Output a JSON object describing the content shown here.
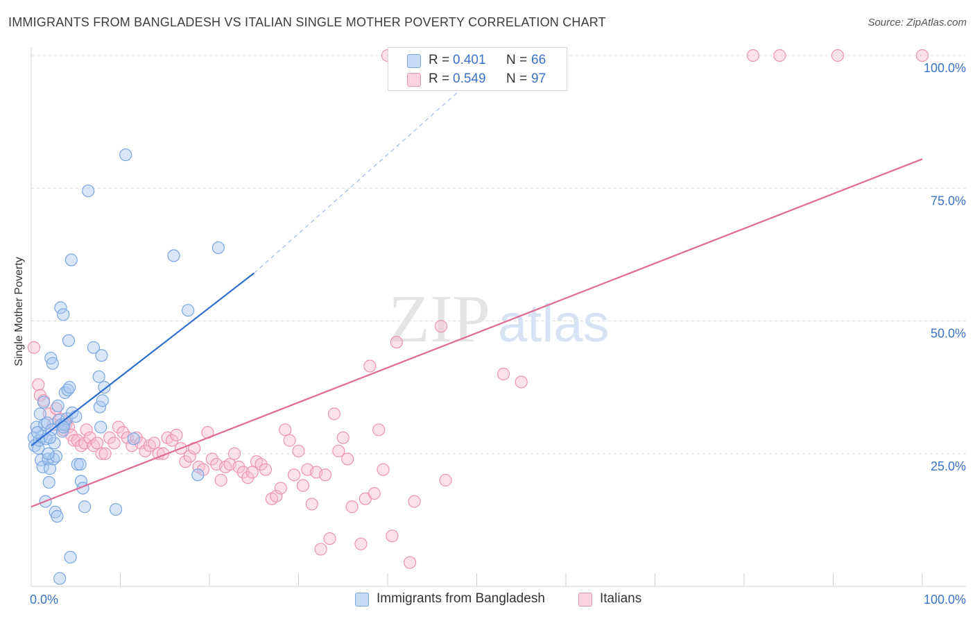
{
  "title": "IMMIGRANTS FROM BANGLADESH VS ITALIAN SINGLE MOTHER POVERTY CORRELATION CHART",
  "source": "Source: ZipAtlas.com",
  "watermark": {
    "zip": "ZIP",
    "atlas": "atlas"
  },
  "legend_top": [
    {
      "r_label": "R =",
      "r_value": "0.401",
      "n_label": "N =",
      "n_value": "66"
    },
    {
      "r_label": "R =",
      "r_value": "0.549",
      "n_label": "N =",
      "n_value": "97"
    }
  ],
  "colors": {
    "bangladesh_fill": "#a9c8f0",
    "bangladesh_stroke": "#7aa6e0",
    "bangladesh_line": "#2e6fd1",
    "italians_fill": "#f6bfd0",
    "italians_stroke": "#ec93b0",
    "italians_line": "#e06a94",
    "tick_text": "#3a72c8",
    "grid": "#dcdcdc"
  },
  "chart_data": {
    "type": "scatter",
    "title": "IMMIGRANTS FROM BANGLADESH VS ITALIAN SINGLE MOTHER POVERTY CORRELATION CHART",
    "xlabel": "",
    "ylabel": "Single Mother Poverty",
    "xlim": [
      0,
      100
    ],
    "ylim": [
      0,
      100
    ],
    "x_tick_labels": [
      "0.0%",
      "100.0%"
    ],
    "y_ticks": [
      25,
      50,
      75,
      100
    ],
    "y_tick_labels": [
      "25.0%",
      "50.0%",
      "75.0%",
      "100.0%"
    ],
    "grid": true,
    "legend_position": "top-center",
    "series": [
      {
        "name": "Immigrants from Bangladesh",
        "trend": {
          "x": [
            0,
            25
          ],
          "y": [
            26.5,
            59
          ]
        },
        "trend_extension": {
          "x": [
            25,
            52.5
          ],
          "y": [
            59,
            100
          ]
        },
        "points": [
          [
            0.3,
            28.0
          ],
          [
            0.4,
            26.5
          ],
          [
            0.6,
            30.0
          ],
          [
            0.8,
            26.0
          ],
          [
            0.9,
            27.5
          ],
          [
            1.0,
            32.5
          ],
          [
            1.1,
            23.8
          ],
          [
            1.2,
            28.3
          ],
          [
            1.3,
            22.5
          ],
          [
            1.4,
            34.7
          ],
          [
            1.5,
            30.5
          ],
          [
            1.6,
            16.0
          ],
          [
            1.7,
            27.8
          ],
          [
            1.8,
            30.8
          ],
          [
            1.9,
            24.0
          ],
          [
            2.0,
            19.6
          ],
          [
            2.1,
            22.2
          ],
          [
            2.2,
            43.0
          ],
          [
            2.3,
            29.5
          ],
          [
            2.4,
            42.0
          ],
          [
            2.5,
            24.0
          ],
          [
            2.6,
            27.0
          ],
          [
            2.7,
            14.0
          ],
          [
            2.8,
            24.5
          ],
          [
            2.9,
            13.2
          ],
          [
            3.0,
            34.0
          ],
          [
            3.1,
            31.3
          ],
          [
            3.2,
            1.5
          ],
          [
            3.3,
            52.5
          ],
          [
            3.4,
            30.5
          ],
          [
            3.5,
            29.2
          ],
          [
            3.6,
            51.2
          ],
          [
            3.7,
            30.5
          ],
          [
            3.8,
            36.5
          ],
          [
            4.0,
            31.6
          ],
          [
            4.1,
            37.0
          ],
          [
            4.2,
            46.3
          ],
          [
            4.3,
            37.5
          ],
          [
            4.4,
            5.5
          ],
          [
            4.5,
            61.5
          ],
          [
            4.6,
            32.7
          ],
          [
            5.2,
            23.0
          ],
          [
            5.5,
            23.0
          ],
          [
            5.6,
            19.8
          ],
          [
            5.8,
            18.5
          ],
          [
            6.0,
            15.0
          ],
          [
            6.4,
            74.5
          ],
          [
            7.0,
            45.0
          ],
          [
            7.6,
            39.5
          ],
          [
            7.7,
            33.8
          ],
          [
            7.8,
            30.0
          ],
          [
            7.9,
            43.5
          ],
          [
            8.0,
            35.0
          ],
          [
            8.2,
            37.5
          ],
          [
            9.5,
            14.5
          ],
          [
            10.6,
            81.3
          ],
          [
            11.5,
            27.8
          ],
          [
            16.0,
            62.3
          ],
          [
            17.6,
            52.0
          ],
          [
            18.7,
            21.0
          ],
          [
            21.0,
            63.8
          ],
          [
            1.9,
            25.0
          ],
          [
            0.7,
            29.0
          ],
          [
            2.1,
            28.0
          ],
          [
            3.6,
            30.0
          ],
          [
            5.0,
            32.0
          ]
        ]
      },
      {
        "name": "Italians",
        "trend": {
          "x": [
            0,
            100
          ],
          "y": [
            15,
            80.5
          ]
        },
        "points": [
          [
            0.3,
            45.0
          ],
          [
            0.8,
            38.0
          ],
          [
            1.0,
            36.0
          ],
          [
            1.4,
            35.0
          ],
          [
            2.0,
            32.5
          ],
          [
            2.5,
            30.5
          ],
          [
            2.8,
            33.5
          ],
          [
            3.3,
            31.5
          ],
          [
            3.6,
            29.5
          ],
          [
            3.9,
            30.5
          ],
          [
            4.2,
            30.0
          ],
          [
            4.5,
            28.5
          ],
          [
            4.8,
            27.5
          ],
          [
            5.2,
            27.5
          ],
          [
            5.6,
            26.5
          ],
          [
            6.0,
            27.0
          ],
          [
            6.2,
            29.5
          ],
          [
            6.6,
            28.0
          ],
          [
            7.0,
            26.5
          ],
          [
            7.4,
            27.0
          ],
          [
            7.9,
            25.0
          ],
          [
            8.3,
            25.0
          ],
          [
            8.8,
            28.0
          ],
          [
            9.3,
            27.0
          ],
          [
            9.8,
            30.0
          ],
          [
            10.3,
            29.0
          ],
          [
            10.8,
            28.0
          ],
          [
            11.3,
            26.5
          ],
          [
            11.8,
            28.0
          ],
          [
            12.3,
            27.0
          ],
          [
            12.8,
            25.5
          ],
          [
            13.3,
            26.5
          ],
          [
            13.8,
            27.0
          ],
          [
            14.3,
            25.0
          ],
          [
            14.8,
            25.0
          ],
          [
            15.3,
            28.0
          ],
          [
            15.8,
            27.5
          ],
          [
            16.3,
            28.5
          ],
          [
            16.8,
            26.0
          ],
          [
            17.3,
            23.5
          ],
          [
            17.8,
            24.5
          ],
          [
            18.3,
            26.0
          ],
          [
            18.8,
            22.5
          ],
          [
            19.3,
            22.0
          ],
          [
            19.8,
            29.0
          ],
          [
            20.3,
            24.0
          ],
          [
            20.8,
            23.0
          ],
          [
            21.3,
            20.0
          ],
          [
            21.8,
            22.5
          ],
          [
            22.3,
            23.0
          ],
          [
            22.8,
            25.0
          ],
          [
            23.3,
            22.5
          ],
          [
            23.8,
            21.5
          ],
          [
            24.3,
            20.5
          ],
          [
            24.8,
            21.5
          ],
          [
            25.3,
            23.5
          ],
          [
            25.8,
            23.0
          ],
          [
            26.3,
            22.0
          ],
          [
            27.0,
            16.5
          ],
          [
            27.5,
            17.0
          ],
          [
            28.0,
            18.5
          ],
          [
            28.5,
            29.5
          ],
          [
            29.0,
            27.5
          ],
          [
            29.5,
            21.0
          ],
          [
            30.0,
            25.5
          ],
          [
            30.5,
            19.0
          ],
          [
            31.0,
            22.0
          ],
          [
            31.5,
            15.5
          ],
          [
            32.0,
            21.5
          ],
          [
            32.5,
            7.0
          ],
          [
            33.0,
            21.0
          ],
          [
            33.5,
            9.0
          ],
          [
            34.0,
            32.5
          ],
          [
            34.5,
            25.5
          ],
          [
            35.0,
            28.0
          ],
          [
            35.5,
            24.0
          ],
          [
            36.0,
            15.0
          ],
          [
            37.0,
            8.0
          ],
          [
            37.5,
            16.5
          ],
          [
            38.0,
            41.5
          ],
          [
            38.5,
            17.5
          ],
          [
            39.0,
            29.5
          ],
          [
            39.5,
            22.0
          ],
          [
            40.5,
            9.5
          ],
          [
            41.0,
            46.0
          ],
          [
            42.5,
            4.5
          ],
          [
            43.0,
            16.0
          ],
          [
            46.0,
            49.0
          ],
          [
            46.5,
            20.0
          ],
          [
            53.0,
            40.0
          ],
          [
            55.0,
            38.5
          ],
          [
            40.0,
            100.0
          ],
          [
            47.0,
            100.0
          ],
          [
            81.0,
            100.0
          ],
          [
            84.0,
            100.0
          ],
          [
            90.5,
            100.0
          ],
          [
            100.0,
            100.0
          ]
        ]
      }
    ]
  },
  "legend_bottom": [
    "Immigrants from Bangladesh",
    "Italians"
  ]
}
